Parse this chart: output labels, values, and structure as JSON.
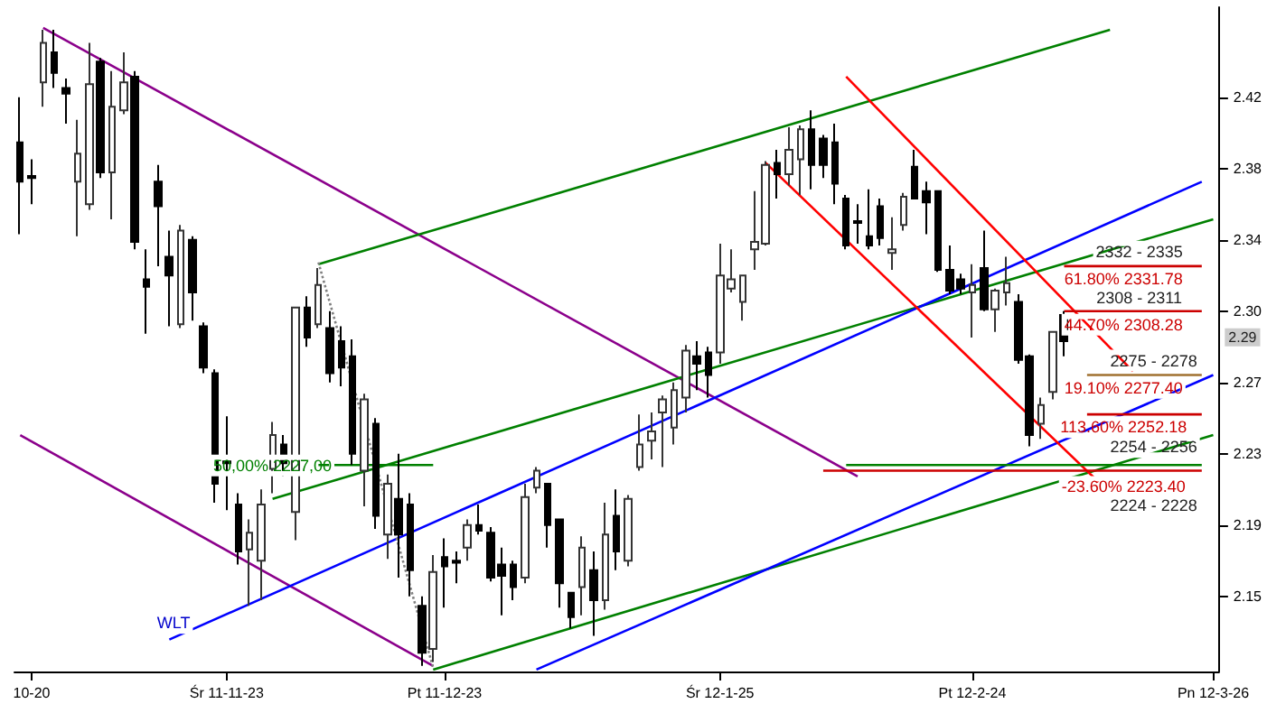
{
  "chart_data": {
    "type": "candlestick",
    "categories": [
      null,
      "10-20",
      null,
      null,
      null,
      null,
      null,
      null,
      null,
      null,
      null,
      null,
      null,
      null,
      null,
      null,
      null,
      null,
      "Śr 11-11-23",
      null,
      null,
      null,
      null,
      null,
      null,
      null,
      null,
      null,
      null,
      null,
      null,
      null,
      null,
      null,
      null,
      null,
      null,
      "Pt 11-12-23",
      null,
      null,
      null,
      null,
      null,
      null,
      null,
      null,
      null,
      null,
      null,
      null,
      null,
      null,
      null,
      null,
      null,
      null,
      null,
      null,
      null,
      null,
      null,
      "Śr 12-1-25",
      null,
      null,
      null,
      null,
      null,
      null,
      null,
      null,
      null,
      null,
      null,
      null,
      null,
      null,
      null,
      null,
      null,
      null,
      null,
      null,
      null,
      "Pt 12-2-24",
      null,
      null,
      null,
      null,
      null,
      null,
      null,
      null,
      null,
      null,
      null,
      null,
      null,
      null,
      null,
      null,
      null,
      null,
      null,
      null,
      "Pn 12-3-26"
    ],
    "ohlc": [
      [
        2.394,
        2.418,
        2.345,
        2.373
      ],
      [
        2.376,
        2.385,
        2.361,
        2.375
      ],
      [
        2.426,
        2.454,
        2.413,
        2.447
      ],
      [
        2.442,
        2.454,
        2.423,
        2.431
      ],
      [
        2.423,
        2.428,
        2.404,
        2.42
      ],
      [
        2.373,
        2.406,
        2.344,
        2.388
      ],
      [
        2.361,
        2.447,
        2.358,
        2.425
      ],
      [
        2.437,
        2.439,
        2.375,
        2.378
      ],
      [
        2.378,
        2.432,
        2.353,
        2.413
      ],
      [
        2.411,
        2.442,
        2.409,
        2.426
      ],
      [
        2.429,
        2.432,
        2.337,
        2.341
      ],
      [
        2.321,
        2.337,
        2.292,
        2.317
      ],
      [
        2.373,
        2.382,
        2.328,
        2.36
      ],
      [
        2.333,
        2.347,
        2.296,
        2.323
      ],
      [
        2.297,
        2.35,
        2.295,
        2.347
      ],
      [
        2.342,
        2.344,
        2.299,
        2.314
      ],
      [
        2.296,
        2.298,
        2.271,
        2.274
      ],
      [
        2.271,
        2.273,
        2.202,
        2.212
      ],
      [
        2.224,
        2.248,
        2.198,
        2.223
      ],
      [
        2.201,
        2.207,
        2.169,
        2.176
      ],
      [
        2.177,
        2.193,
        2.147,
        2.186
      ],
      [
        2.171,
        2.209,
        2.15,
        2.201
      ],
      [
        2.22,
        2.245,
        2.207,
        2.238
      ],
      [
        2.233,
        2.238,
        2.216,
        2.223
      ],
      [
        2.197,
        2.306,
        2.182,
        2.306
      ],
      [
        2.306,
        2.312,
        2.285,
        2.29
      ],
      [
        2.297,
        2.327,
        2.295,
        2.318
      ],
      [
        2.295,
        2.304,
        2.266,
        2.271
      ],
      [
        2.288,
        2.296,
        2.264,
        2.274
      ],
      [
        2.28,
        2.289,
        2.222,
        2.228
      ],
      [
        2.219,
        2.26,
        2.2,
        2.257
      ],
      [
        2.244,
        2.247,
        2.188,
        2.195
      ],
      [
        2.185,
        2.217,
        2.172,
        2.212
      ],
      [
        2.204,
        2.228,
        2.162,
        2.185
      ],
      [
        2.201,
        2.207,
        2.152,
        2.166
      ],
      [
        2.147,
        2.152,
        2.115,
        2.122
      ],
      [
        2.124,
        2.174,
        2.117,
        2.165
      ],
      [
        2.173,
        2.183,
        2.146,
        2.168
      ],
      [
        2.171,
        2.176,
        2.159,
        2.17
      ],
      [
        2.178,
        2.193,
        2.171,
        2.19
      ],
      [
        2.19,
        2.201,
        2.185,
        2.187
      ],
      [
        2.186,
        2.189,
        2.16,
        2.162
      ],
      [
        2.169,
        2.178,
        2.142,
        2.163
      ],
      [
        2.169,
        2.171,
        2.15,
        2.157
      ],
      [
        2.162,
        2.212,
        2.159,
        2.205
      ],
      [
        2.21,
        2.221,
        2.207,
        2.219
      ],
      [
        2.212,
        2.212,
        2.178,
        2.19
      ],
      [
        2.193,
        2.193,
        2.146,
        2.159
      ],
      [
        2.154,
        2.154,
        2.135,
        2.141
      ],
      [
        2.157,
        2.184,
        2.142,
        2.178
      ],
      [
        2.166,
        2.176,
        2.131,
        2.15
      ],
      [
        2.15,
        2.202,
        2.145,
        2.185
      ],
      [
        2.195,
        2.209,
        2.166,
        2.176
      ],
      [
        2.171,
        2.206,
        2.168,
        2.204
      ],
      [
        2.221,
        2.249,
        2.219,
        2.233
      ],
      [
        2.235,
        2.25,
        2.225,
        2.24
      ],
      [
        2.25,
        2.259,
        2.221,
        2.257
      ],
      [
        2.242,
        2.266,
        2.233,
        2.262
      ],
      [
        2.258,
        2.286,
        2.25,
        2.283
      ],
      [
        2.28,
        2.288,
        2.262,
        2.276
      ],
      [
        2.282,
        2.285,
        2.258,
        2.27
      ],
      [
        2.282,
        2.34,
        2.276,
        2.323
      ],
      [
        2.316,
        2.337,
        2.314,
        2.321
      ],
      [
        2.309,
        2.323,
        2.299,
        2.323
      ],
      [
        2.337,
        2.368,
        2.326,
        2.341
      ],
      [
        2.34,
        2.384,
        2.339,
        2.382
      ],
      [
        2.383,
        2.39,
        2.364,
        2.377
      ],
      [
        2.377,
        2.402,
        2.371,
        2.39
      ],
      [
        2.385,
        2.403,
        2.366,
        2.401
      ],
      [
        2.401,
        2.411,
        2.369,
        2.382
      ],
      [
        2.396,
        2.398,
        2.375,
        2.382
      ],
      [
        2.394,
        2.404,
        2.361,
        2.372
      ],
      [
        2.364,
        2.366,
        2.337,
        2.339
      ],
      [
        2.352,
        2.361,
        2.34,
        2.351
      ],
      [
        2.344,
        2.369,
        2.337,
        2.339
      ],
      [
        2.36,
        2.364,
        2.339,
        2.343
      ],
      [
        2.335,
        2.354,
        2.326,
        2.337
      ],
      [
        2.35,
        2.367,
        2.347,
        2.365
      ],
      [
        2.381,
        2.39,
        2.364,
        2.364
      ],
      [
        2.368,
        2.373,
        2.345,
        2.362
      ],
      [
        2.368,
        2.368,
        2.325,
        2.326
      ],
      [
        2.326,
        2.339,
        2.313,
        2.315
      ],
      [
        2.321,
        2.324,
        2.313,
        2.316
      ],
      [
        2.314,
        2.329,
        2.29,
        2.318
      ],
      [
        2.327,
        2.347,
        2.304,
        2.305
      ],
      [
        2.305,
        2.316,
        2.293,
        2.315
      ],
      [
        2.314,
        2.333,
        2.307,
        2.319
      ],
      [
        2.309,
        2.313,
        2.276,
        2.278
      ],
      [
        2.28,
        2.281,
        2.232,
        2.238
      ],
      [
        2.244,
        2.258,
        2.236,
        2.254
      ],
      [
        2.261,
        2.293,
        2.257,
        2.293
      ],
      [
        2.302,
        2.304,
        2.28,
        2.288
      ],
      null,
      null,
      null,
      null,
      null,
      null,
      null,
      null,
      null,
      null,
      null,
      null,
      null
    ],
    "series": [
      {
        "type": "line",
        "color": "#8b008b",
        "values": [
          null,
          null,
          2.455,
          null,
          null,
          null,
          null,
          null,
          null,
          null,
          null,
          null,
          null,
          null,
          null,
          null,
          null,
          null,
          null,
          null,
          null,
          null,
          null,
          null,
          null,
          null,
          null,
          null,
          null,
          null,
          null,
          null,
          null,
          null,
          null,
          null,
          null,
          null,
          null,
          null,
          null,
          null,
          null,
          null,
          null,
          null,
          null,
          null,
          null,
          null,
          null,
          null,
          null,
          null,
          null,
          null,
          null,
          null,
          null,
          null,
          null,
          null,
          null,
          null,
          null,
          null,
          null,
          null,
          null,
          null,
          null,
          null,
          null,
          2.216,
          null,
          null,
          null,
          null,
          null,
          null,
          null,
          null,
          null,
          null,
          null,
          null,
          null,
          null,
          null,
          null,
          null,
          null,
          null,
          null,
          null,
          null,
          null,
          null,
          null,
          null,
          null,
          null,
          null,
          null,
          null
        ]
      },
      {
        "type": "line",
        "color": "#8b008b",
        "values": [
          2.238,
          null,
          null,
          null,
          null,
          null,
          null,
          null,
          null,
          null,
          null,
          null,
          null,
          null,
          null,
          null,
          null,
          null,
          null,
          null,
          null,
          null,
          null,
          null,
          null,
          null,
          null,
          null,
          null,
          null,
          null,
          null,
          null,
          null,
          null,
          null,
          2.115,
          null,
          null,
          null,
          null,
          null,
          null,
          null,
          null,
          null,
          null,
          null,
          null,
          null,
          null,
          null,
          null,
          null,
          null,
          null,
          null,
          null,
          null,
          null,
          null,
          null,
          null,
          null,
          null,
          null,
          null,
          null,
          null,
          null,
          null,
          null,
          null,
          null,
          null,
          null,
          null,
          null,
          null,
          null,
          null,
          null,
          null,
          null,
          null,
          null,
          null,
          null,
          null,
          null,
          null,
          null,
          null,
          null,
          null,
          null,
          null,
          null,
          null,
          null,
          null,
          null,
          null,
          null,
          null
        ]
      },
      {
        "type": "line",
        "color": "#008000",
        "values": [
          null,
          null,
          null,
          null,
          null,
          null,
          null,
          null,
          null,
          null,
          null,
          null,
          null,
          null,
          null,
          null,
          null,
          null,
          null,
          null,
          null,
          null,
          null,
          null,
          null,
          null,
          2.329,
          null,
          null,
          null,
          null,
          null,
          null,
          null,
          null,
          null,
          null,
          null,
          null,
          null,
          null,
          null,
          null,
          null,
          null,
          null,
          null,
          null,
          null,
          null,
          null,
          null,
          null,
          null,
          null,
          null,
          null,
          null,
          null,
          null,
          null,
          null,
          null,
          null,
          null,
          null,
          null,
          null,
          null,
          null,
          null,
          null,
          null,
          null,
          null,
          null,
          null,
          null,
          null,
          null,
          null,
          null,
          null,
          null,
          null,
          null,
          null,
          null,
          null,
          null,
          null,
          null,
          null,
          null,
          null,
          2.454,
          null,
          null,
          null,
          null,
          null,
          null,
          null,
          null,
          null
        ]
      },
      {
        "type": "line",
        "color": "#008000",
        "values": [
          null,
          null,
          null,
          null,
          null,
          null,
          null,
          null,
          null,
          null,
          null,
          null,
          null,
          null,
          null,
          null,
          null,
          null,
          null,
          null,
          null,
          null,
          2.204,
          null,
          null,
          null,
          null,
          null,
          null,
          null,
          null,
          null,
          null,
          null,
          null,
          null,
          null,
          null,
          null,
          null,
          null,
          null,
          null,
          null,
          null,
          null,
          null,
          null,
          null,
          null,
          null,
          null,
          null,
          null,
          null,
          null,
          null,
          null,
          null,
          null,
          null,
          null,
          null,
          null,
          null,
          null,
          null,
          null,
          null,
          null,
          null,
          null,
          null,
          null,
          null,
          null,
          null,
          null,
          null,
          null,
          null,
          null,
          null,
          null,
          null,
          null,
          null,
          null,
          null,
          null,
          null,
          null,
          null,
          null,
          null,
          null,
          null,
          null,
          null,
          null,
          null,
          null,
          null,
          null,
          2.353
        ]
      },
      {
        "type": "line",
        "color": "#008000",
        "values": [
          null,
          null,
          null,
          null,
          null,
          null,
          null,
          null,
          null,
          null,
          null,
          null,
          null,
          null,
          null,
          null,
          null,
          null,
          null,
          null,
          null,
          null,
          null,
          null,
          null,
          null,
          null,
          null,
          null,
          null,
          null,
          null,
          null,
          null,
          null,
          null,
          2.113,
          null,
          null,
          null,
          null,
          null,
          null,
          null,
          null,
          null,
          null,
          null,
          null,
          null,
          null,
          null,
          null,
          null,
          null,
          null,
          null,
          null,
          null,
          null,
          null,
          null,
          null,
          null,
          null,
          null,
          null,
          null,
          null,
          null,
          null,
          null,
          null,
          null,
          null,
          null,
          null,
          null,
          null,
          null,
          null,
          null,
          null,
          null,
          null,
          null,
          null,
          null,
          null,
          null,
          null,
          null,
          null,
          null,
          null,
          null,
          null,
          null,
          null,
          null,
          null,
          null,
          null,
          null,
          2.238
        ]
      },
      {
        "type": "line",
        "color": "#0000ff",
        "values": [
          null,
          null,
          null,
          null,
          null,
          null,
          null,
          null,
          null,
          null,
          null,
          null,
          null,
          2.129,
          null,
          null,
          null,
          null,
          null,
          null,
          null,
          null,
          null,
          null,
          null,
          null,
          null,
          null,
          null,
          null,
          null,
          null,
          null,
          null,
          null,
          null,
          null,
          null,
          null,
          null,
          null,
          null,
          null,
          null,
          null,
          null,
          null,
          null,
          null,
          null,
          null,
          null,
          null,
          null,
          null,
          null,
          null,
          null,
          null,
          null,
          null,
          null,
          null,
          null,
          null,
          null,
          null,
          null,
          null,
          null,
          null,
          null,
          null,
          null,
          null,
          null,
          null,
          null,
          null,
          null,
          null,
          null,
          null,
          null,
          null,
          null,
          null,
          null,
          null,
          null,
          null,
          null,
          null,
          null,
          null,
          null,
          null,
          null,
          null,
          null,
          null,
          null,
          null,
          2.373,
          null
        ]
      },
      {
        "type": "line",
        "color": "#0000ff",
        "values": [
          null,
          null,
          null,
          null,
          null,
          null,
          null,
          null,
          null,
          null,
          null,
          null,
          null,
          null,
          null,
          null,
          null,
          null,
          null,
          null,
          null,
          null,
          null,
          null,
          null,
          null,
          null,
          null,
          null,
          null,
          null,
          null,
          null,
          null,
          null,
          null,
          null,
          null,
          null,
          null,
          null,
          null,
          null,
          null,
          null,
          2.113,
          null,
          null,
          null,
          null,
          null,
          null,
          null,
          null,
          null,
          null,
          null,
          null,
          null,
          null,
          null,
          null,
          null,
          null,
          null,
          null,
          null,
          null,
          null,
          null,
          null,
          null,
          null,
          null,
          null,
          null,
          null,
          null,
          null,
          null,
          null,
          null,
          null,
          null,
          null,
          null,
          null,
          null,
          null,
          null,
          null,
          null,
          null,
          null,
          null,
          null,
          null,
          null,
          null,
          null,
          null,
          null,
          null,
          null,
          2.27
        ]
      },
      {
        "type": "line",
        "color": "#ff0000",
        "values": [
          null,
          null,
          null,
          null,
          null,
          null,
          null,
          null,
          null,
          null,
          null,
          null,
          null,
          null,
          null,
          null,
          null,
          null,
          null,
          null,
          null,
          null,
          null,
          null,
          null,
          null,
          null,
          null,
          null,
          null,
          null,
          null,
          null,
          null,
          null,
          null,
          null,
          null,
          null,
          null,
          null,
          null,
          null,
          null,
          null,
          null,
          null,
          null,
          null,
          null,
          null,
          null,
          null,
          null,
          null,
          null,
          null,
          null,
          null,
          null,
          null,
          null,
          null,
          null,
          null,
          null,
          null,
          null,
          null,
          null,
          null,
          null,
          2.429,
          null,
          null,
          null,
          null,
          null,
          null,
          null,
          null,
          null,
          null,
          null,
          null,
          null,
          null,
          null,
          null,
          null,
          null,
          null,
          null,
          null,
          null,
          null,
          null,
          2.272,
          null,
          null,
          null,
          null,
          null,
          null,
          null
        ]
      },
      {
        "type": "line",
        "color": "#ff0000",
        "values": [
          null,
          null,
          null,
          null,
          null,
          null,
          null,
          null,
          null,
          null,
          null,
          null,
          null,
          null,
          null,
          null,
          null,
          null,
          null,
          null,
          null,
          null,
          null,
          null,
          null,
          null,
          null,
          null,
          null,
          null,
          null,
          null,
          null,
          null,
          null,
          null,
          null,
          null,
          null,
          null,
          null,
          null,
          null,
          null,
          null,
          null,
          null,
          null,
          null,
          null,
          null,
          null,
          null,
          null,
          null,
          null,
          null,
          null,
          null,
          null,
          null,
          null,
          null,
          null,
          null,
          2.383,
          null,
          null,
          null,
          null,
          null,
          null,
          null,
          null,
          null,
          null,
          null,
          null,
          null,
          null,
          null,
          null,
          null,
          null,
          null,
          null,
          null,
          null,
          null,
          null,
          null,
          null,
          null,
          null,
          2.213,
          null,
          null,
          null,
          null,
          null,
          null,
          null,
          null,
          null,
          null
        ]
      },
      {
        "type": "line",
        "color": "#808080",
        "line_style": "dotted",
        "values": [
          null,
          null,
          null,
          null,
          null,
          null,
          null,
          null,
          null,
          null,
          null,
          null,
          null,
          null,
          null,
          null,
          null,
          null,
          null,
          null,
          null,
          null,
          null,
          null,
          null,
          null,
          2.33,
          null,
          null,
          null,
          null,
          null,
          null,
          null,
          null,
          null,
          2.114,
          null,
          null,
          null,
          null,
          null,
          null,
          null,
          null,
          null,
          null,
          null,
          null,
          null,
          null,
          null,
          null,
          null,
          null,
          null,
          null,
          null,
          null,
          null,
          null,
          null,
          null,
          null,
          null,
          null,
          null,
          null,
          null,
          null,
          null,
          null,
          null,
          null,
          null,
          null,
          null,
          null,
          null,
          null,
          null,
          null,
          null,
          null,
          null,
          null,
          null,
          null,
          null,
          null,
          null,
          null,
          null,
          null,
          null,
          null,
          null,
          null,
          null,
          null,
          null,
          null,
          null,
          null,
          null
        ]
      },
      {
        "type": "line",
        "color": "#008000",
        "values": [
          null,
          null,
          null,
          null,
          null,
          null,
          null,
          null,
          null,
          null,
          null,
          null,
          null,
          null,
          null,
          null,
          null,
          null,
          null,
          null,
          null,
          null,
          null,
          null,
          null,
          null,
          2.222,
          null,
          null,
          null,
          null,
          null,
          null,
          null,
          null,
          null,
          2.222,
          null,
          null,
          null,
          null,
          null,
          null,
          null,
          null,
          null,
          null,
          null,
          null,
          null,
          null,
          null,
          null,
          null,
          null,
          null,
          null,
          null,
          null,
          null,
          null,
          null,
          null,
          null,
          null,
          null,
          null,
          null,
          null,
          null,
          null,
          null,
          null,
          null,
          null,
          null,
          null,
          null,
          null,
          null,
          null,
          null,
          null,
          null,
          null,
          null,
          null,
          null,
          null,
          null,
          null,
          null,
          null,
          null,
          null,
          null,
          null,
          null,
          null,
          null,
          null,
          null,
          null,
          null,
          null
        ]
      },
      {
        "type": "line",
        "color": "#cc0000",
        "values": [
          null,
          null,
          null,
          null,
          null,
          null,
          null,
          null,
          null,
          null,
          null,
          null,
          null,
          null,
          null,
          null,
          null,
          null,
          null,
          null,
          null,
          null,
          null,
          null,
          null,
          null,
          null,
          null,
          null,
          null,
          null,
          null,
          null,
          null,
          null,
          null,
          null,
          null,
          null,
          null,
          null,
          null,
          null,
          null,
          null,
          null,
          null,
          null,
          null,
          null,
          null,
          null,
          null,
          null,
          null,
          null,
          null,
          null,
          null,
          null,
          null,
          null,
          null,
          null,
          null,
          null,
          null,
          null,
          null,
          null,
          null,
          null,
          null,
          null,
          null,
          null,
          null,
          null,
          null,
          null,
          null,
          null,
          null,
          null,
          null,
          null,
          null,
          null,
          null,
          null,
          null,
          2.328,
          null,
          null,
          null,
          null,
          null,
          null,
          null,
          null,
          null,
          null,
          null,
          2.328,
          null
        ]
      },
      {
        "type": "line",
        "color": "#cc0000",
        "values": [
          null,
          null,
          null,
          null,
          null,
          null,
          null,
          null,
          null,
          null,
          null,
          null,
          null,
          null,
          null,
          null,
          null,
          null,
          null,
          null,
          null,
          null,
          null,
          null,
          null,
          null,
          null,
          null,
          null,
          null,
          null,
          null,
          null,
          null,
          null,
          null,
          null,
          null,
          null,
          null,
          null,
          null,
          null,
          null,
          null,
          null,
          null,
          null,
          null,
          null,
          null,
          null,
          null,
          null,
          null,
          null,
          null,
          null,
          null,
          null,
          null,
          null,
          null,
          null,
          null,
          null,
          null,
          null,
          null,
          null,
          null,
          null,
          null,
          null,
          null,
          null,
          null,
          null,
          null,
          null,
          null,
          null,
          null,
          null,
          null,
          null,
          null,
          null,
          null,
          null,
          null,
          2.304,
          null,
          null,
          null,
          null,
          null,
          null,
          null,
          null,
          null,
          null,
          null,
          2.304,
          null
        ]
      },
      {
        "type": "line",
        "color": "#a07030",
        "values": [
          null,
          null,
          null,
          null,
          null,
          null,
          null,
          null,
          null,
          null,
          null,
          null,
          null,
          null,
          null,
          null,
          null,
          null,
          null,
          null,
          null,
          null,
          null,
          null,
          null,
          null,
          null,
          null,
          null,
          null,
          null,
          null,
          null,
          null,
          null,
          null,
          null,
          null,
          null,
          null,
          null,
          null,
          null,
          null,
          null,
          null,
          null,
          null,
          null,
          null,
          null,
          null,
          null,
          null,
          null,
          null,
          null,
          null,
          null,
          null,
          null,
          null,
          null,
          null,
          null,
          null,
          null,
          null,
          null,
          null,
          null,
          null,
          null,
          null,
          null,
          null,
          null,
          null,
          null,
          null,
          null,
          null,
          null,
          null,
          null,
          null,
          null,
          null,
          null,
          null,
          null,
          null,
          null,
          2.27,
          null,
          null,
          null,
          null,
          null,
          null,
          null,
          null,
          null,
          2.27,
          null
        ]
      },
      {
        "type": "line",
        "color": "#cc0000",
        "values": [
          null,
          null,
          null,
          null,
          null,
          null,
          null,
          null,
          null,
          null,
          null,
          null,
          null,
          null,
          null,
          null,
          null,
          null,
          null,
          null,
          null,
          null,
          null,
          null,
          null,
          null,
          null,
          null,
          null,
          null,
          null,
          null,
          null,
          null,
          null,
          null,
          null,
          null,
          null,
          null,
          null,
          null,
          null,
          null,
          null,
          null,
          null,
          null,
          null,
          null,
          null,
          null,
          null,
          null,
          null,
          null,
          null,
          null,
          null,
          null,
          null,
          null,
          null,
          null,
          null,
          null,
          null,
          null,
          null,
          null,
          null,
          null,
          null,
          null,
          null,
          null,
          null,
          null,
          null,
          null,
          null,
          null,
          null,
          null,
          null,
          null,
          null,
          null,
          null,
          null,
          null,
          null,
          null,
          2.249,
          null,
          null,
          null,
          null,
          null,
          null,
          null,
          null,
          null,
          2.249,
          null
        ]
      },
      {
        "type": "line",
        "color": "#cc0000",
        "values": [
          null,
          null,
          null,
          null,
          null,
          null,
          null,
          null,
          null,
          null,
          null,
          null,
          null,
          null,
          null,
          null,
          null,
          null,
          null,
          null,
          null,
          null,
          null,
          null,
          null,
          null,
          null,
          null,
          null,
          null,
          null,
          null,
          null,
          null,
          null,
          null,
          null,
          null,
          null,
          null,
          null,
          null,
          null,
          null,
          null,
          null,
          null,
          null,
          null,
          null,
          null,
          null,
          null,
          null,
          null,
          null,
          null,
          null,
          null,
          null,
          null,
          null,
          null,
          null,
          null,
          null,
          null,
          null,
          null,
          null,
          2.219,
          null,
          null,
          null,
          null,
          null,
          null,
          null,
          null,
          null,
          null,
          null,
          null,
          null,
          null,
          null,
          null,
          null,
          null,
          null,
          null,
          null,
          null,
          null,
          null,
          null,
          null,
          null,
          null,
          null,
          null,
          null,
          null,
          2.219,
          null
        ]
      },
      {
        "type": "line",
        "color": "#008000",
        "values": [
          null,
          null,
          null,
          null,
          null,
          null,
          null,
          null,
          null,
          null,
          null,
          null,
          null,
          null,
          null,
          null,
          null,
          null,
          null,
          null,
          null,
          null,
          null,
          null,
          null,
          null,
          null,
          null,
          null,
          null,
          null,
          null,
          null,
          null,
          null,
          null,
          null,
          null,
          null,
          null,
          null,
          null,
          null,
          null,
          null,
          null,
          null,
          null,
          null,
          null,
          null,
          null,
          null,
          null,
          null,
          null,
          null,
          null,
          null,
          null,
          null,
          null,
          null,
          null,
          null,
          null,
          null,
          null,
          null,
          null,
          null,
          null,
          2.222,
          null,
          null,
          null,
          null,
          null,
          null,
          null,
          null,
          null,
          null,
          null,
          null,
          null,
          null,
          null,
          null,
          null,
          null,
          null,
          null,
          null,
          null,
          null,
          null,
          null,
          null,
          null,
          null,
          null,
          null,
          2.222,
          null
        ]
      }
    ],
    "annotations": [
      "WLT",
      "50,00% 2227,00",
      "2332 - 2335",
      "61.80% 2331.78",
      "2308 - 2311",
      "44.70% 2308.28",
      "2275 - 2278",
      "19.10% 2277.40",
      "113.60% 2252.18",
      "2254 - 2256",
      "-23.60% 2223.40",
      "2224 - 2228",
      "2.29"
    ],
    "ylim": [
      2.112,
      2.466
    ],
    "yticks": [
      {
        "value": 2.152,
        "label": "2.15"
      },
      {
        "value": 2.19,
        "label": "2.19"
      },
      {
        "value": 2.228,
        "label": "2.23"
      },
      {
        "value": 2.266,
        "label": "2.27"
      },
      {
        "value": 2.304,
        "label": "2.30"
      },
      {
        "value": 2.342,
        "label": "2.34"
      },
      {
        "value": 2.38,
        "label": "2.38"
      },
      {
        "value": 2.418,
        "label": "2.42"
      }
    ],
    "grid": false
  }
}
